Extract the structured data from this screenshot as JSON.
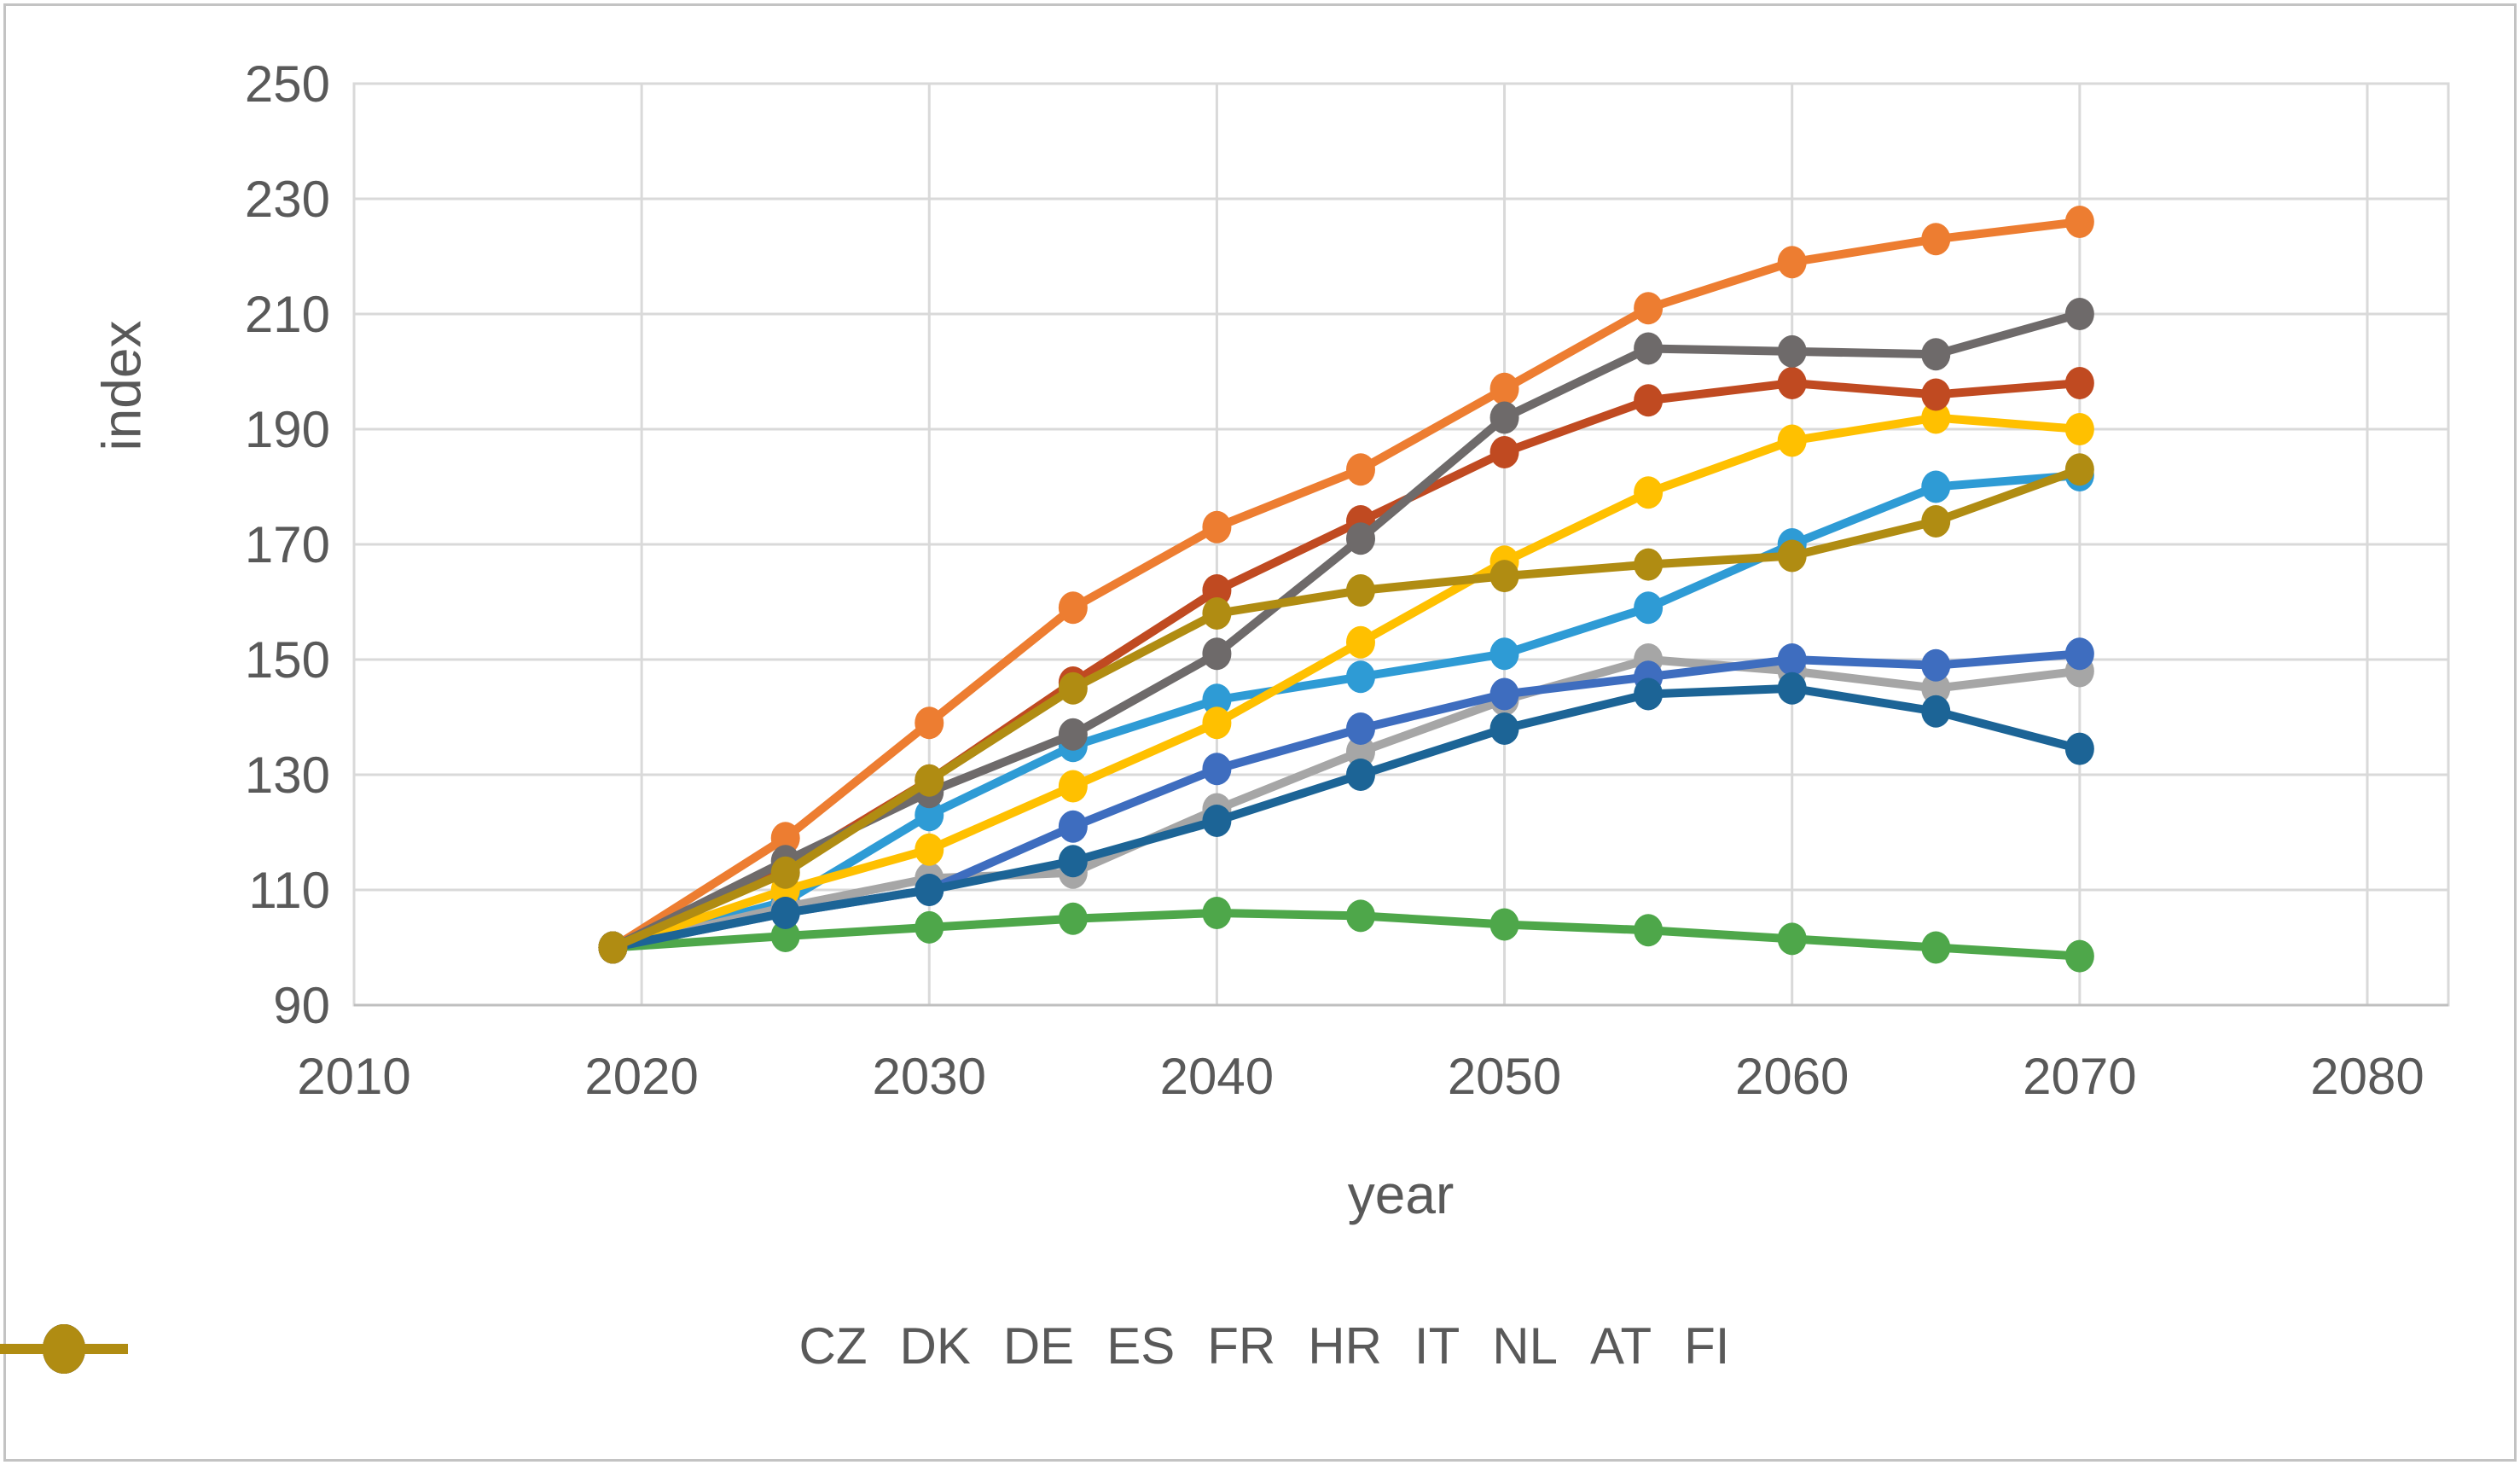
{
  "figure": {
    "background": "#ffffff",
    "border_color": "#c3c3c3",
    "text_color": "#595959",
    "gridline_color": "#d9d9d9",
    "axis_line_color": "#bfbfbf"
  },
  "chart_data": {
    "type": "line",
    "title": "",
    "xlabel": "year",
    "ylabel": "index",
    "x": [
      2019,
      2025,
      2030,
      2035,
      2040,
      2045,
      2050,
      2055,
      2060,
      2065,
      2070
    ],
    "x_axis": {
      "min": 2010,
      "max": 2080,
      "tick_step": 10,
      "ticks": [
        "2010",
        "2020",
        "2030",
        "2040",
        "2050",
        "2060",
        "2070",
        "2080"
      ]
    },
    "y_axis": {
      "min": 90,
      "max": 250,
      "tick_step": 20,
      "ticks": [
        "90",
        "110",
        "130",
        "150",
        "170",
        "190",
        "210",
        "230",
        "250"
      ]
    },
    "grid": true,
    "legend_position": "bottom",
    "marker": "circle",
    "series": [
      {
        "name": "CZ",
        "color": "#2E9BD5",
        "values": [
          100,
          108,
          123,
          135,
          143,
          147,
          151,
          159,
          170,
          180,
          182
        ]
      },
      {
        "name": "DK",
        "color": "#ED7D31",
        "values": [
          100,
          119,
          139,
          159,
          173,
          183,
          197,
          211,
          219,
          223,
          226
        ]
      },
      {
        "name": "DE",
        "color": "#A6A6A6",
        "values": [
          100,
          107,
          112,
          113,
          124,
          134,
          143,
          150,
          148,
          145,
          148
        ]
      },
      {
        "name": "ES",
        "color": "#FFC000",
        "values": [
          100,
          110,
          117,
          128,
          139,
          153,
          167,
          179,
          188,
          192,
          190
        ]
      },
      {
        "name": "FR",
        "color": "#3E6DBF",
        "values": [
          100,
          106,
          110,
          121,
          131,
          138,
          144,
          147,
          150,
          149,
          151
        ]
      },
      {
        "name": "HR",
        "color": "#4EA74A",
        "values": [
          100,
          102,
          103.5,
          105,
          106,
          105.5,
          104,
          103,
          101.5,
          100,
          98.5
        ]
      },
      {
        "name": "IT",
        "color": "#1C6496",
        "values": [
          100,
          106,
          110,
          115,
          122,
          130,
          138,
          144,
          145,
          141,
          134.5
        ]
      },
      {
        "name": "NL",
        "color": "#C04A21",
        "values": [
          100,
          114,
          129,
          146,
          162,
          174,
          186,
          195,
          198,
          196,
          198
        ]
      },
      {
        "name": "AT",
        "color": "#6E6A6A",
        "values": [
          100,
          115,
          127,
          137,
          151,
          171,
          192,
          204,
          203.5,
          203,
          210
        ]
      },
      {
        "name": "FI",
        "color": "#B08C12",
        "values": [
          100,
          113,
          129,
          145,
          158,
          162,
          164.5,
          166.5,
          168,
          174,
          183
        ]
      }
    ]
  }
}
